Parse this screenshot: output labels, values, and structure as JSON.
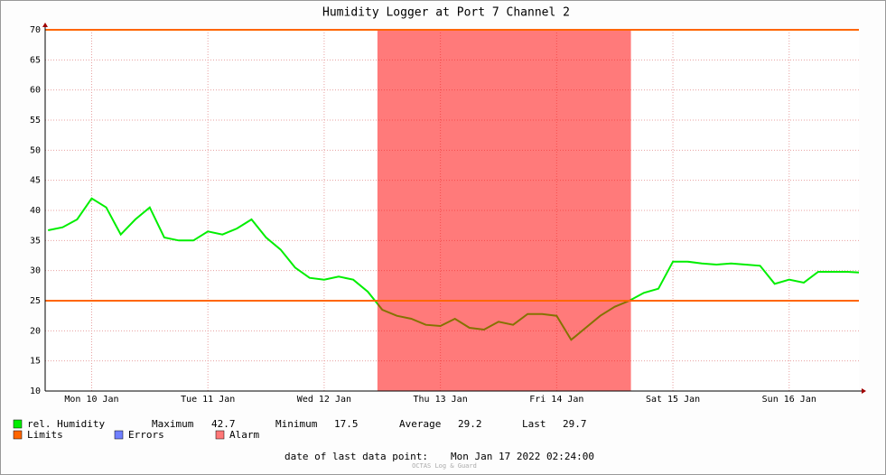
{
  "chart_data": {
    "type": "line",
    "title": "Humidity Logger at Port 7 Channel 2",
    "x": [
      "2022-01-10 03:00",
      "2022-01-10 06:00",
      "2022-01-10 09:00",
      "2022-01-10 12:00",
      "2022-01-10 15:00",
      "2022-01-10 18:00",
      "2022-01-10 21:00",
      "2022-01-11 00:00",
      "2022-01-11 03:00",
      "2022-01-11 06:00",
      "2022-01-11 09:00",
      "2022-01-11 12:00",
      "2022-01-11 15:00",
      "2022-01-11 18:00",
      "2022-01-11 21:00",
      "2022-01-12 00:00",
      "2022-01-12 03:00",
      "2022-01-12 06:00",
      "2022-01-12 09:00",
      "2022-01-12 12:00",
      "2022-01-12 15:00",
      "2022-01-12 18:00",
      "2022-01-12 21:00",
      "2022-01-13 00:00",
      "2022-01-13 03:00",
      "2022-01-13 06:00",
      "2022-01-13 09:00",
      "2022-01-13 12:00",
      "2022-01-13 15:00",
      "2022-01-13 18:00",
      "2022-01-13 21:00",
      "2022-01-14 00:00",
      "2022-01-14 03:00",
      "2022-01-14 06:00",
      "2022-01-14 09:00",
      "2022-01-14 12:00",
      "2022-01-14 15:00",
      "2022-01-14 18:00",
      "2022-01-14 21:00",
      "2022-01-15 00:00",
      "2022-01-15 03:00",
      "2022-01-15 06:00",
      "2022-01-15 09:00",
      "2022-01-15 12:00",
      "2022-01-15 15:00",
      "2022-01-15 18:00",
      "2022-01-15 21:00",
      "2022-01-16 00:00",
      "2022-01-16 03:00",
      "2022-01-16 06:00",
      "2022-01-16 09:00",
      "2022-01-16 12:00",
      "2022-01-16 15:00",
      "2022-01-16 18:00",
      "2022-01-16 21:00",
      "2022-01-17 00:00",
      "2022-01-17 02:24"
    ],
    "series": [
      {
        "name": "rel. Humidity",
        "color": "#00ee00",
        "values": [
          36.7,
          37.2,
          38.5,
          42,
          40.5,
          36,
          38.5,
          40.5,
          35.5,
          35,
          35,
          36.5,
          36,
          37,
          38.5,
          35.5,
          33.5,
          30.5,
          28.8,
          28.5,
          29,
          28.5,
          26.5,
          23.5,
          22.5,
          22,
          21,
          20.8,
          22,
          20.5,
          20.2,
          21.5,
          21,
          22.8,
          22.8,
          22.5,
          18.5,
          20.5,
          22.5,
          24,
          25,
          26.3,
          27,
          31.5,
          31.5,
          31.2,
          31,
          31.2,
          31,
          30.8,
          27.8,
          28.5,
          28,
          29.8,
          29.8,
          29.8,
          29.7
        ]
      }
    ],
    "xlim": [
      "2022-01-10 02:24",
      "2022-01-17 02:24"
    ],
    "xticks": [
      {
        "value": "2022-01-10 12:00",
        "label": "Mon 10 Jan"
      },
      {
        "value": "2022-01-11 12:00",
        "label": "Tue 11 Jan"
      },
      {
        "value": "2022-01-12 12:00",
        "label": "Wed 12 Jan"
      },
      {
        "value": "2022-01-13 12:00",
        "label": "Thu 13 Jan"
      },
      {
        "value": "2022-01-14 12:00",
        "label": "Fri 14 Jan"
      },
      {
        "value": "2022-01-15 12:00",
        "label": "Sat 15 Jan"
      },
      {
        "value": "2022-01-16 12:00",
        "label": "Sun 16 Jan"
      }
    ],
    "ylim": [
      10,
      70
    ],
    "yticks": [
      10,
      15,
      20,
      25,
      30,
      35,
      40,
      45,
      50,
      55,
      60,
      65,
      70
    ],
    "grid": true,
    "limits": {
      "name": "Limits",
      "color": "#ff6600",
      "values": [
        25,
        70
      ]
    },
    "errors": {
      "name": "Errors",
      "color": "#7080ff"
    },
    "alarm": {
      "name": "Alarm",
      "color": "#ff0000",
      "spans": [
        [
          "2022-01-12 23:00",
          "2022-01-15 03:20"
        ]
      ]
    },
    "stats": [
      {
        "label": "Maximum",
        "value": 42.7
      },
      {
        "label": "Minimum",
        "value": 17.5
      },
      {
        "label": "Average",
        "value": 29.2
      },
      {
        "label": "Last",
        "value": 29.7
      }
    ],
    "footer": {
      "label": "date of last data point:",
      "value": "Mon Jan 17 2022 02:24:00"
    },
    "watermark": "OCTAS Log & Guard"
  }
}
